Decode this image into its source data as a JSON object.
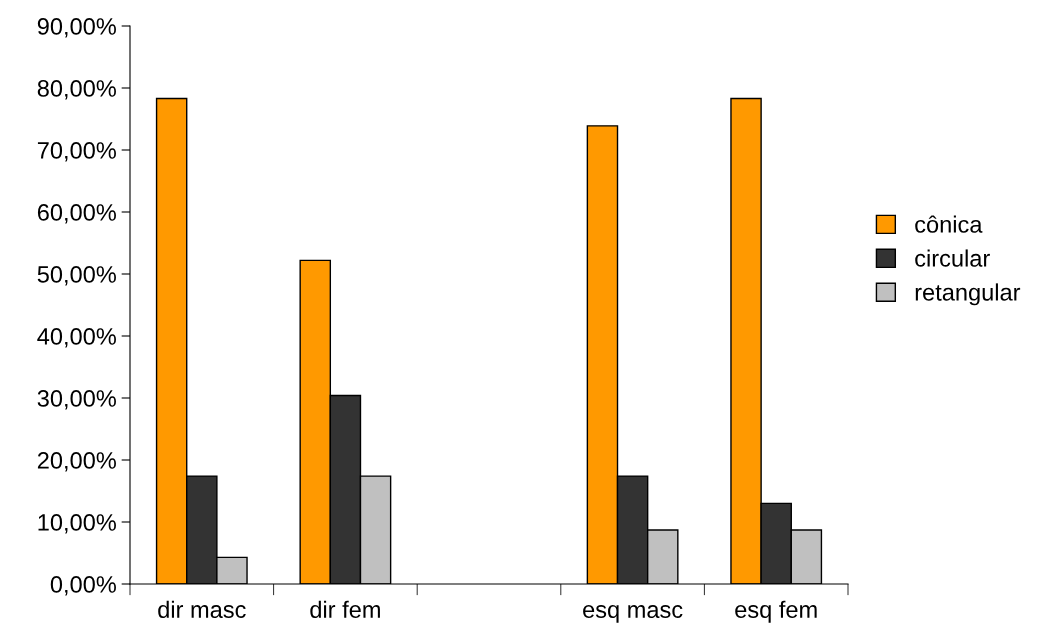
{
  "chart_data": {
    "type": "bar",
    "categories": [
      "dir masc",
      "dir fem",
      null,
      "esq masc",
      "esq fem"
    ],
    "series": [
      {
        "name": "cônica",
        "color": "#ff9900",
        "values": [
          78.3,
          52.2,
          null,
          73.9,
          78.3
        ]
      },
      {
        "name": "circular",
        "color": "#333333",
        "values": [
          17.4,
          30.4,
          null,
          17.4,
          13.0
        ]
      },
      {
        "name": "retangular",
        "color": "#c0c0c0",
        "values": [
          4.3,
          17.4,
          null,
          8.7,
          8.7
        ]
      }
    ],
    "ylim": [
      0,
      90
    ],
    "yticks": [
      {
        "value": 0,
        "label": "0,00%"
      },
      {
        "value": 10,
        "label": "10,00%"
      },
      {
        "value": 20,
        "label": "20,00%"
      },
      {
        "value": 30,
        "label": "30,00%"
      },
      {
        "value": 40,
        "label": "40,00%"
      },
      {
        "value": 50,
        "label": "50,00%"
      },
      {
        "value": 60,
        "label": "60,00%"
      },
      {
        "value": 70,
        "label": "70,00%"
      },
      {
        "value": 80,
        "label": "80,00%"
      },
      {
        "value": 90,
        "label": "90,00%"
      }
    ],
    "grid": false,
    "legend": "right"
  }
}
